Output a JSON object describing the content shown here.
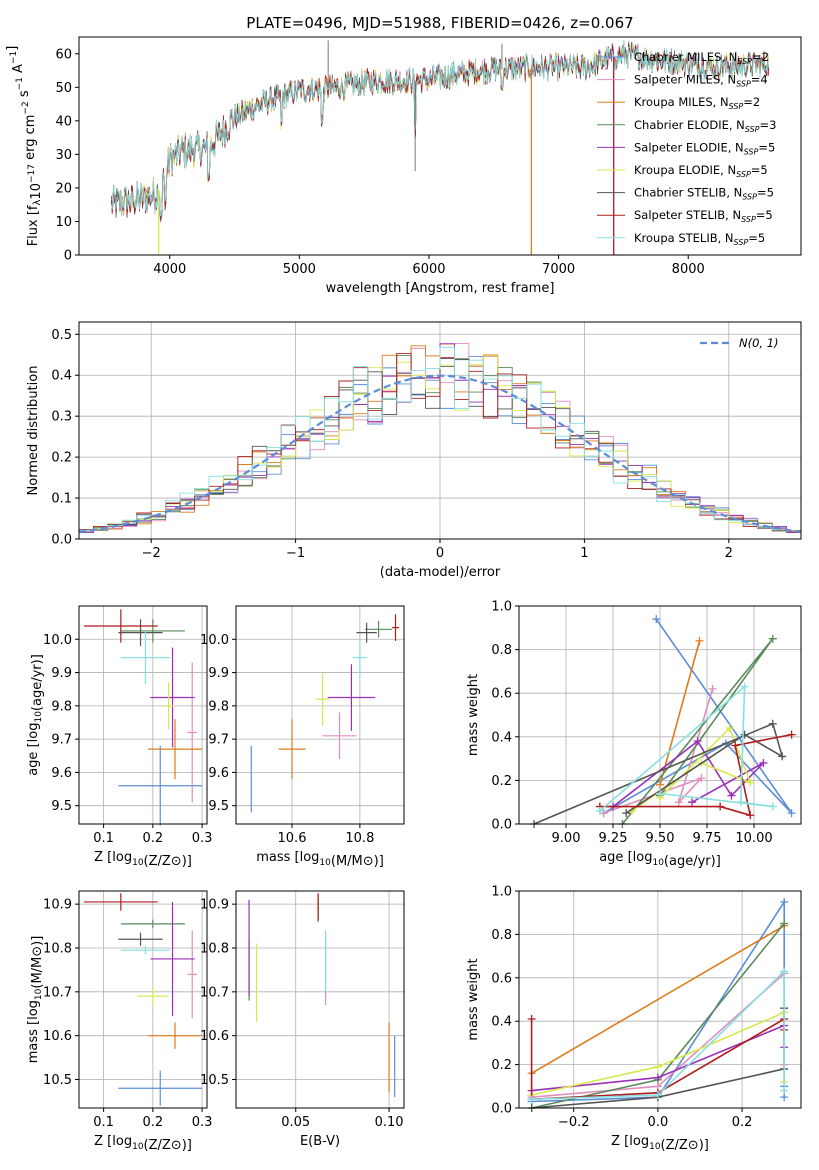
{
  "figure_title": "PLATE=0496, MJD=51988, FIBERID=0426, z=0.067",
  "series_colors": [
    "#5b8dd9",
    "#e08ec0",
    "#e07b1c",
    "#5a8a5a",
    "#9b30b8",
    "#d7e84b",
    "#555555",
    "#b01c1c",
    "#86dfe0"
  ],
  "chart_data": [
    {
      "type": "line",
      "name": "spectrum",
      "xlabel": "wavelength [Angstrom, rest frame]",
      "ylabel": "Flux [fλ10^-17 erg cm^-2 s^-1 A^-1]",
      "xlim": [
        3300,
        8870
      ],
      "ylim": [
        0,
        65
      ],
      "xticks": [
        4000,
        5000,
        6000,
        7000,
        8000
      ],
      "yticks": [
        0,
        10,
        20,
        30,
        40,
        50,
        60
      ],
      "grid": false,
      "legend": "upper-right",
      "legend_entries": [
        {
          "label": "Chabrier MILES, N",
          "sub": "SSP",
          "suffix": "=2"
        },
        {
          "label": "Salpeter MILES, N",
          "sub": "SSP",
          "suffix": "=4"
        },
        {
          "label": "Kroupa MILES, N",
          "sub": "SSP",
          "suffix": "=2"
        },
        {
          "label": "Chabrier ELODIE, N",
          "sub": "SSP",
          "suffix": "=3"
        },
        {
          "label": "Salpeter ELODIE, N",
          "sub": "SSP",
          "suffix": "=5"
        },
        {
          "label": "Kroupa ELODIE, N",
          "sub": "SSP",
          "suffix": "=5"
        },
        {
          "label": "Chabrier STELIB, N",
          "sub": "SSP",
          "suffix": "=5"
        },
        {
          "label": "Salpeter STELIB, N",
          "sub": "SSP",
          "suffix": "=5"
        },
        {
          "label": "Kroupa STELIB, N",
          "sub": "SSP",
          "suffix": "=5"
        }
      ],
      "continuum": {
        "x": [
          3550,
          3700,
          3900,
          4000,
          4100,
          4300,
          4500,
          4700,
          5000,
          5300,
          5600,
          5900,
          6100,
          6400,
          6800,
          7200,
          7500,
          7800,
          8200,
          8600
        ],
        "y": [
          15,
          16,
          18,
          28,
          31,
          32,
          41,
          45,
          49,
          50,
          52,
          52,
          53,
          55,
          56,
          56,
          60,
          58,
          56,
          57
        ]
      },
      "flux_range": [
        3550,
        8620
      ],
      "absorption_dips": [
        {
          "x": 3730,
          "y": 18
        },
        {
          "x": 3933,
          "y": 10
        },
        {
          "x": 3968,
          "y": 13
        },
        {
          "x": 4300,
          "y": 22
        },
        {
          "x": 4861,
          "y": 37
        },
        {
          "x": 5175,
          "y": 38
        },
        {
          "x": 5893,
          "y": 36
        },
        {
          "x": 6563,
          "y": 48
        }
      ],
      "spikes": [
        {
          "x": 5222,
          "y": 64
        },
        {
          "x": 6563,
          "y": 63
        },
        {
          "x": 5893,
          "y": 25
        }
      ],
      "dropouts": [
        {
          "x": 3915,
          "color": "#d7e84b"
        },
        {
          "x": 6790,
          "color": "#e07b1c"
        },
        {
          "x": 7425,
          "color": "#b01c1c"
        }
      ]
    },
    {
      "type": "histogram",
      "name": "residuals",
      "xlabel": "(data-model)/error",
      "ylabel": "Normed distribution",
      "xlim": [
        -2.5,
        2.5
      ],
      "ylim": [
        0,
        0.53
      ],
      "xticks": [
        -2,
        -1,
        0,
        1,
        2
      ],
      "yticks": [
        0.0,
        0.1,
        0.2,
        0.3,
        0.4,
        0.5
      ],
      "grid": true,
      "bin_width": 0.1,
      "legend": "upper-right",
      "legend_label": "N(0, 1)",
      "reference_curve": "gaussian(0,1)"
    },
    {
      "type": "errorbar",
      "name": "age-vs-Z",
      "xlabel": "Z [log10(Z/Z⊙)]",
      "ylabel": "age [log10(age/yr)]",
      "xlim": [
        0.05,
        0.31
      ],
      "ylim": [
        9.445,
        10.1
      ],
      "xticks": [
        0.1,
        0.2,
        0.3
      ],
      "yticks": [
        9.5,
        9.6,
        9.7,
        9.8,
        9.9,
        10.0
      ],
      "grid": true,
      "points": [
        {
          "c": 0,
          "x": 0.215,
          "xe": 0.085,
          "y": 9.56,
          "ye": 0.12
        },
        {
          "c": 1,
          "x": 0.28,
          "xe": 0.01,
          "y": 9.72,
          "ye": 0.21
        },
        {
          "c": 2,
          "x": 0.245,
          "xe": 0.055,
          "y": 9.67,
          "ye": 0.09
        },
        {
          "c": 3,
          "x": 0.2,
          "xe": 0.065,
          "y": 10.025,
          "ye": 0.035
        },
        {
          "c": 4,
          "x": 0.24,
          "xe": 0.045,
          "y": 9.825,
          "ye": 0.15
        },
        {
          "c": 5,
          "x": 0.232,
          "xe": 0.01,
          "y": 9.8,
          "ye": 0.07
        },
        {
          "c": 6,
          "x": 0.175,
          "xe": 0.045,
          "y": 10.02,
          "ye": 0.04
        },
        {
          "c": 7,
          "x": 0.135,
          "xe": 0.075,
          "y": 10.04,
          "ye": 0.05
        },
        {
          "c": 8,
          "x": 0.185,
          "xe": 0.05,
          "y": 9.945,
          "ye": 0.08
        }
      ]
    },
    {
      "type": "errorbar",
      "name": "age-vs-mass",
      "xlabel": "mass [log10(M/M⊙)]",
      "ylabel": "",
      "xlim": [
        10.435,
        10.93
      ],
      "ylim": [
        9.445,
        10.1
      ],
      "xticks": [
        10.6,
        10.8
      ],
      "yticks": [
        9.5,
        9.6,
        9.7,
        9.8,
        9.9,
        10.0
      ],
      "grid": true,
      "points": [
        {
          "c": 0,
          "x": 10.48,
          "xe": 0.0,
          "y": 9.58,
          "ye": 0.1
        },
        {
          "c": 1,
          "x": 10.74,
          "xe": 0.05,
          "y": 9.71,
          "ye": 0.07
        },
        {
          "c": 2,
          "x": 10.6,
          "xe": 0.04,
          "y": 9.67,
          "ye": 0.09
        },
        {
          "c": 3,
          "x": 10.855,
          "xe": 0.04,
          "y": 10.03,
          "ye": 0.025
        },
        {
          "c": 4,
          "x": 10.775,
          "xe": 0.07,
          "y": 9.825,
          "ye": 0.1
        },
        {
          "c": 5,
          "x": 10.69,
          "xe": 0.02,
          "y": 9.82,
          "ye": 0.08
        },
        {
          "c": 6,
          "x": 10.82,
          "xe": 0.03,
          "y": 10.02,
          "ye": 0.03
        },
        {
          "c": 7,
          "x": 10.905,
          "xe": 0.01,
          "y": 10.035,
          "ye": 0.04
        },
        {
          "c": 8,
          "x": 10.8,
          "xe": 0.02,
          "y": 9.945,
          "ye": 0.06
        }
      ]
    },
    {
      "type": "line",
      "name": "mass-weight-vs-age",
      "xlabel": "age [log10(age/yr)]",
      "ylabel": "mass weight",
      "xlim": [
        8.75,
        10.25
      ],
      "ylim": [
        0,
        1
      ],
      "xticks": [
        9.0,
        9.25,
        9.5,
        9.75,
        10.0
      ],
      "yticks": [
        0.0,
        0.2,
        0.4,
        0.6,
        0.8,
        1.0
      ],
      "grid": true,
      "series": [
        {
          "c": 0,
          "x": [
            9.48,
            10.2,
            9.85,
            9.2
          ],
          "y": [
            0.94,
            0.05,
            0.37,
            0.05
          ]
        },
        {
          "c": 1,
          "x": [
            9.2,
            9.72,
            9.6,
            9.78
          ],
          "y": [
            0.05,
            0.21,
            0.1,
            0.62
          ]
        },
        {
          "c": 2,
          "x": [
            9.5,
            9.71
          ],
          "y": [
            0.18,
            0.84
          ]
        },
        {
          "c": 3,
          "x": [
            9.3,
            10.1,
            9.5
          ],
          "y": [
            0.0,
            0.85,
            0.13
          ]
        },
        {
          "c": 4,
          "x": [
            9.25,
            9.7,
            9.88,
            10.05,
            9.67
          ],
          "y": [
            0.08,
            0.38,
            0.13,
            0.28,
            0.1
          ]
        },
        {
          "c": 5,
          "x": [
            9.5,
            9.87,
            9.98,
            9.72,
            9.35
          ],
          "y": [
            0.12,
            0.44,
            0.19,
            0.28,
            0.06
          ]
        },
        {
          "c": 6,
          "x": [
            8.83,
            10.1,
            10.15,
            9.95,
            9.32
          ],
          "y": [
            0.0,
            0.46,
            0.31,
            0.41,
            0.05
          ]
        },
        {
          "c": 7,
          "x": [
            9.18,
            9.82,
            9.98,
            9.9,
            10.2
          ],
          "y": [
            0.08,
            0.08,
            0.04,
            0.36,
            0.41
          ]
        },
        {
          "c": 8,
          "x": [
            9.18,
            9.95,
            9.93,
            10.1,
            9.5
          ],
          "y": [
            0.06,
            0.63,
            0.1,
            0.08,
            0.14
          ]
        }
      ]
    },
    {
      "type": "errorbar",
      "name": "mass-vs-Z",
      "xlabel": "Z [log10(Z/Z⊙)]",
      "ylabel": "mass [log10(M/M⊙)]",
      "xlim": [
        0.05,
        0.31
      ],
      "ylim": [
        10.435,
        10.93
      ],
      "xticks": [
        0.1,
        0.2,
        0.3
      ],
      "yticks": [
        10.5,
        10.6,
        10.7,
        10.8,
        10.9
      ],
      "grid": true,
      "points": [
        {
          "c": 0,
          "x": 0.215,
          "xe": 0.085,
          "y": 10.48,
          "ye": 0.04
        },
        {
          "c": 1,
          "x": 0.28,
          "xe": 0.01,
          "y": 10.74,
          "ye": 0.1
        },
        {
          "c": 2,
          "x": 0.245,
          "xe": 0.055,
          "y": 10.6,
          "ye": 0.03
        },
        {
          "c": 3,
          "x": 0.2,
          "xe": 0.065,
          "y": 10.855,
          "ye": 0.01
        },
        {
          "c": 4,
          "x": 0.24,
          "xe": 0.045,
          "y": 10.775,
          "ye": 0.13
        },
        {
          "c": 5,
          "x": 0.2,
          "xe": 0.032,
          "y": 10.69,
          "ye": 0.02
        },
        {
          "c": 6,
          "x": 0.175,
          "xe": 0.045,
          "y": 10.82,
          "ye": 0.015
        },
        {
          "c": 7,
          "x": 0.135,
          "xe": 0.075,
          "y": 10.905,
          "ye": 0.02
        },
        {
          "c": 8,
          "x": 0.185,
          "xe": 0.05,
          "y": 10.795,
          "ye": 0.01
        }
      ]
    },
    {
      "type": "errorbar",
      "name": "mass-vs-EBV",
      "xlabel": "E(B-V)",
      "ylabel": "",
      "xlim": [
        0.018,
        0.108
      ],
      "ylim": [
        10.435,
        10.93
      ],
      "xticks": [
        0.05,
        0.1
      ],
      "yticks": [
        10.5,
        10.6,
        10.7,
        10.8,
        10.9
      ],
      "grid": true,
      "points": [
        {
          "c": 0,
          "x": 0.103,
          "xe": 0.0,
          "y": 10.53,
          "ye": 0.07
        },
        {
          "c": 1,
          "x": 0.066,
          "xe": 0.0,
          "y": 10.75,
          "ye": 0.08
        },
        {
          "c": 2,
          "x": 0.1,
          "xe": 0.0,
          "y": 10.55,
          "ye": 0.08
        },
        {
          "c": 3,
          "x": 0.025,
          "xe": 0.0,
          "y": 10.75,
          "ye": 0.07
        },
        {
          "c": 4,
          "x": 0.025,
          "xe": 0.0,
          "y": 10.8,
          "ye": 0.11
        },
        {
          "c": 5,
          "x": 0.029,
          "xe": 0.0,
          "y": 10.72,
          "ye": 0.09
        },
        {
          "c": 6,
          "x": 0.062,
          "xe": 0.0,
          "y": 10.89,
          "ye": 0.03
        },
        {
          "c": 7,
          "x": 0.062,
          "xe": 0.0,
          "y": 10.895,
          "ye": 0.03
        },
        {
          "c": 8,
          "x": 0.066,
          "xe": 0.0,
          "y": 10.77,
          "ye": 0.07
        }
      ]
    },
    {
      "type": "line",
      "name": "mass-weight-vs-Z",
      "xlabel": "Z [log10(Z/Z⊙)]",
      "ylabel": "mass weight",
      "xlim": [
        -0.33,
        0.34
      ],
      "ylim": [
        0,
        1
      ],
      "xticks": [
        -0.2,
        0.0,
        0.2
      ],
      "yticks": [
        0.0,
        0.2,
        0.4,
        0.6,
        0.8,
        1.0
      ],
      "grid": true,
      "series": [
        {
          "c": 0,
          "x": [
            -0.3,
            0.0,
            0.3,
            0.3,
            0.3
          ],
          "y": [
            0.03,
            0.05,
            0.95,
            0.1,
            0.05
          ]
        },
        {
          "c": 1,
          "x": [
            -0.3,
            0.0,
            0.3,
            0.3
          ],
          "y": [
            0.05,
            0.1,
            0.62,
            0.2
          ]
        },
        {
          "c": 2,
          "x": [
            -0.3,
            0.3
          ],
          "y": [
            0.16,
            0.84
          ]
        },
        {
          "c": 3,
          "x": [
            -0.3,
            0.0,
            0.3
          ],
          "y": [
            0.0,
            0.13,
            0.85
          ]
        },
        {
          "c": 4,
          "x": [
            -0.3,
            0.0,
            0.3,
            0.3
          ],
          "y": [
            0.08,
            0.14,
            0.38,
            0.28
          ]
        },
        {
          "c": 5,
          "x": [
            -0.3,
            0.0,
            0.3,
            0.3
          ],
          "y": [
            0.06,
            0.19,
            0.44,
            0.12
          ]
        },
        {
          "c": 6,
          "x": [
            -0.3,
            0.0,
            0.3,
            0.3
          ],
          "y": [
            0.0,
            0.05,
            0.18,
            0.46
          ]
        },
        {
          "c": 7,
          "x": [
            -0.3,
            -0.3,
            0.0,
            0.3,
            0.3
          ],
          "y": [
            0.41,
            0.04,
            0.07,
            0.41,
            0.36
          ]
        },
        {
          "c": 8,
          "x": [
            -0.3,
            0.0,
            0.3,
            0.3
          ],
          "y": [
            0.04,
            0.06,
            0.63,
            0.08
          ]
        }
      ]
    }
  ]
}
